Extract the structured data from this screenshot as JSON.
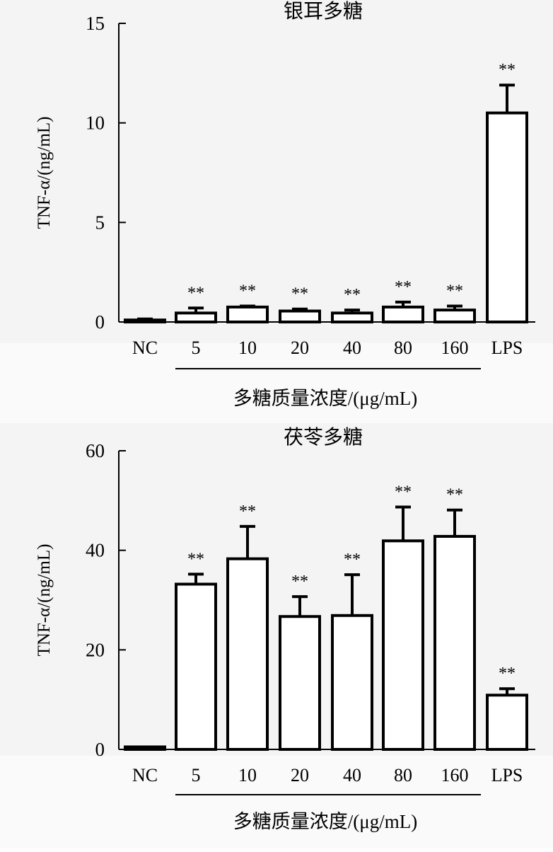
{
  "chart_data": [
    {
      "type": "bar",
      "title": "银耳多糖",
      "ylabel": "TNF-α/(ng/mL)",
      "xlabel": "多糖质量浓度/(μg/mL)",
      "ylim": [
        0,
        15
      ],
      "yticks": [
        "0",
        "5",
        "10",
        "15"
      ],
      "categories": [
        "NC",
        "5",
        "10",
        "20",
        "40",
        "80",
        "160",
        "LPS"
      ],
      "values": [
        0.1,
        0.45,
        0.75,
        0.55,
        0.45,
        0.75,
        0.6,
        10.5
      ],
      "errors": [
        0.05,
        0.25,
        0.05,
        0.1,
        0.15,
        0.25,
        0.2,
        1.4
      ],
      "significance": [
        "",
        "**",
        "**",
        "**",
        "**",
        "**",
        "**",
        "**"
      ],
      "grid": false
    },
    {
      "type": "bar",
      "title": "茯苓多糖",
      "ylabel": "TNF-α/(ng/mL)",
      "xlabel": "多糖质量浓度/(μg/mL)",
      "ylim": [
        0,
        60
      ],
      "yticks": [
        "0",
        "20",
        "40",
        "60"
      ],
      "categories": [
        "NC",
        "5",
        "10",
        "20",
        "40",
        "80",
        "160",
        "LPS"
      ],
      "values": [
        0.5,
        33.2,
        38.3,
        26.7,
        26.9,
        41.9,
        42.8,
        10.9
      ],
      "errors": [
        0,
        2.0,
        6.5,
        4.0,
        8.2,
        6.8,
        5.3,
        1.3
      ],
      "significance": [
        "",
        "**",
        "**",
        "**",
        "**",
        "**",
        "**",
        "**"
      ],
      "grid": false
    }
  ]
}
